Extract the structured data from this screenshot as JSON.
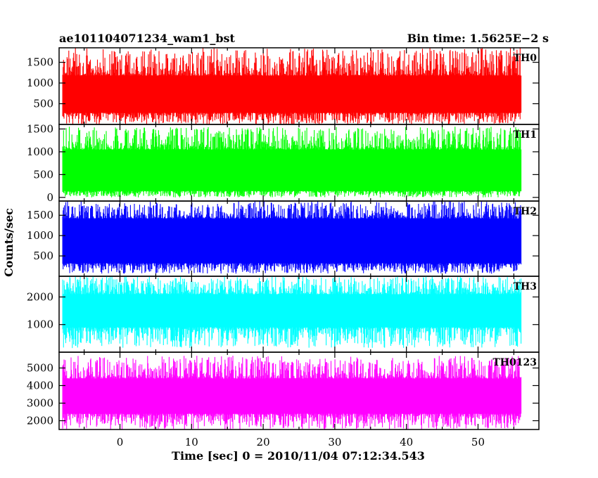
{
  "header": {
    "left": "ae101104071234_wam1_bst",
    "right": "Bin time: 1.5625E−2 s"
  },
  "chart_data": {
    "type": "line",
    "xlabel": "Time [sec] 0 = 2010/11/04 07:12:34.543",
    "ylabel": "Counts/sec",
    "xlim": [
      -8.5,
      58.5
    ],
    "x_range": [
      -8.0,
      56.0
    ],
    "x_ticks": [
      0,
      10,
      20,
      30,
      40,
      50
    ],
    "panels": [
      {
        "name": "TH0",
        "color": "#ff0000",
        "ylim": [
          0,
          1850
        ],
        "y_ticks": [
          500,
          1000,
          1500
        ],
        "band": {
          "min": 0,
          "low": 280,
          "mid": 720,
          "high": 1180,
          "max": 1850
        }
      },
      {
        "name": "TH1",
        "color": "#00ff00",
        "ylim": [
          -80,
          1600
        ],
        "y_ticks": [
          0,
          500,
          1000,
          1500
        ],
        "band": {
          "min": 0,
          "low": 140,
          "mid": 600,
          "high": 1050,
          "max": 1550
        }
      },
      {
        "name": "TH2",
        "color": "#0000ff",
        "ylim": [
          0,
          1850
        ],
        "y_ticks": [
          500,
          1000,
          1500
        ],
        "band": {
          "min": 60,
          "low": 320,
          "mid": 900,
          "high": 1420,
          "max": 1850
        }
      },
      {
        "name": "TH3",
        "color": "#00ffff",
        "ylim": [
          0,
          2750
        ],
        "y_ticks": [
          1000,
          2000
        ],
        "band": {
          "min": 150,
          "low": 900,
          "mid": 1500,
          "high": 2100,
          "max": 2750
        }
      },
      {
        "name": "TH0123",
        "color": "#ff00ff",
        "ylim": [
          1500,
          5900
        ],
        "y_ticks": [
          2000,
          3000,
          4000,
          5000
        ],
        "band": {
          "min": 1500,
          "low": 2400,
          "mid": 3400,
          "high": 4400,
          "max": 5700
        }
      }
    ]
  }
}
